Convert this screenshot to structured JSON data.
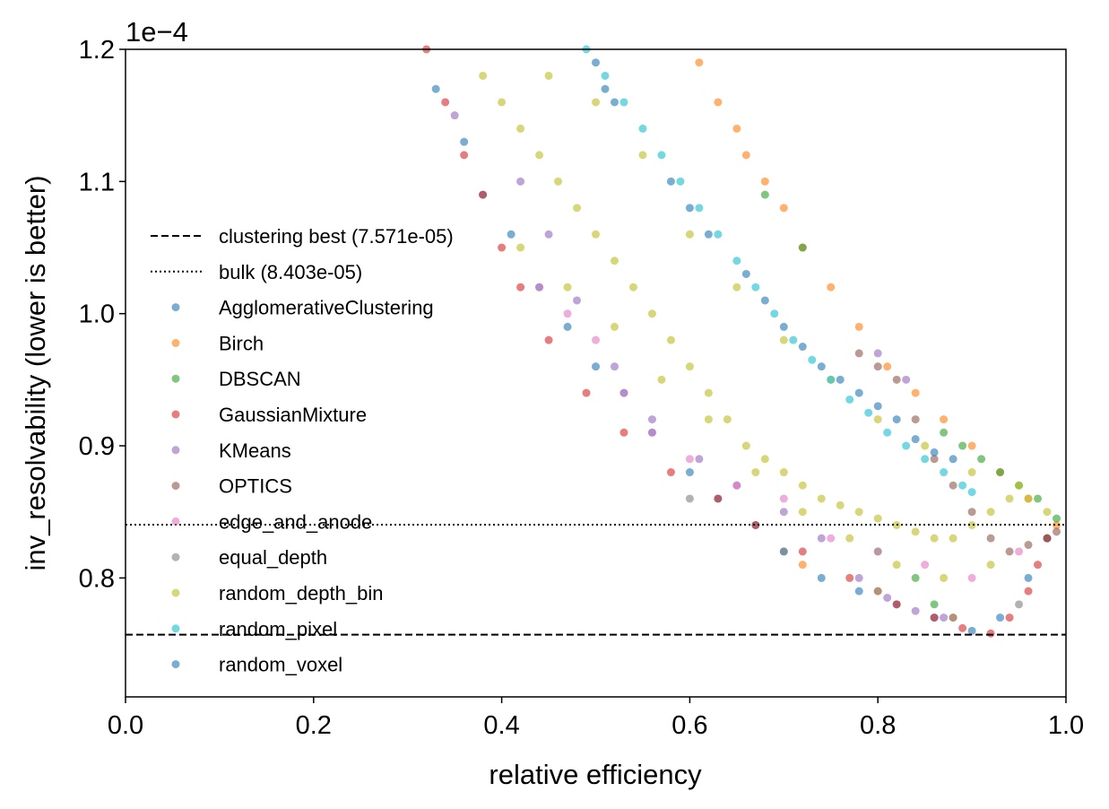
{
  "chart_data": {
    "type": "scatter",
    "title": "",
    "xlabel": "relative efficiency",
    "ylabel": "inv_resolvability (lower is better)",
    "y_offset_label": "1e−4",
    "xlim": [
      0.0,
      1.0
    ],
    "ylim": [
      0.71,
      1.2
    ],
    "x_ticks": [
      0.0,
      0.2,
      0.4,
      0.6,
      0.8,
      1.0
    ],
    "x_tick_labels": [
      "0.0",
      "0.2",
      "0.4",
      "0.6",
      "0.8",
      "1.0"
    ],
    "y_ticks": [
      0.8,
      0.9,
      1.0,
      1.1,
      1.2
    ],
    "y_tick_labels": [
      "0.8",
      "0.9",
      "1.0",
      "1.1",
      "1.2"
    ],
    "grid": false,
    "legend_position": "center-left",
    "reference_lines": [
      {
        "name": "clustering best (7.571e-05)",
        "y": 0.7571,
        "style": "dashed",
        "color": "#000000"
      },
      {
        "name": "bulk (8.403e-05)",
        "y": 0.8403,
        "style": "dotted",
        "color": "#000000"
      }
    ],
    "series": [
      {
        "name": "AgglomerativeClustering",
        "color": "#1f77b4",
        "points": [
          [
            0.33,
            1.17
          ],
          [
            0.36,
            1.13
          ],
          [
            0.38,
            1.09
          ],
          [
            0.41,
            1.06
          ],
          [
            0.44,
            1.02
          ],
          [
            0.47,
            0.99
          ],
          [
            0.5,
            0.96
          ],
          [
            0.53,
            0.94
          ],
          [
            0.56,
            0.91
          ],
          [
            0.6,
            0.88
          ],
          [
            0.63,
            0.86
          ],
          [
            0.67,
            0.84
          ],
          [
            0.7,
            0.82
          ],
          [
            0.74,
            0.8
          ],
          [
            0.78,
            0.79
          ],
          [
            0.82,
            0.78
          ],
          [
            0.86,
            0.77
          ],
          [
            0.9,
            0.76
          ],
          [
            0.93,
            0.77
          ],
          [
            0.96,
            0.8
          ],
          [
            0.98,
            0.83
          ]
        ]
      },
      {
        "name": "Birch",
        "color": "#ff7f0e",
        "points": [
          [
            0.61,
            1.19
          ],
          [
            0.63,
            1.16
          ],
          [
            0.65,
            1.14
          ],
          [
            0.66,
            1.12
          ],
          [
            0.68,
            1.1
          ],
          [
            0.7,
            1.08
          ],
          [
            0.72,
            1.05
          ],
          [
            0.75,
            1.02
          ],
          [
            0.78,
            0.99
          ],
          [
            0.81,
            0.96
          ],
          [
            0.84,
            0.94
          ],
          [
            0.87,
            0.92
          ],
          [
            0.9,
            0.9
          ],
          [
            0.93,
            0.88
          ],
          [
            0.96,
            0.86
          ],
          [
            0.99,
            0.84
          ],
          [
            0.72,
            0.81
          ],
          [
            0.8,
            0.79
          ],
          [
            0.88,
            0.77
          ]
        ]
      },
      {
        "name": "DBSCAN",
        "color": "#2ca02c",
        "points": [
          [
            0.68,
            1.09
          ],
          [
            0.72,
            1.05
          ],
          [
            0.87,
            0.91
          ],
          [
            0.89,
            0.9
          ],
          [
            0.91,
            0.89
          ],
          [
            0.93,
            0.88
          ],
          [
            0.95,
            0.87
          ],
          [
            0.97,
            0.86
          ],
          [
            0.99,
            0.845
          ],
          [
            0.8,
            0.82
          ],
          [
            0.84,
            0.8
          ],
          [
            0.86,
            0.78
          ]
        ]
      },
      {
        "name": "GaussianMixture",
        "color": "#d62728",
        "points": [
          [
            0.32,
            1.2
          ],
          [
            0.34,
            1.16
          ],
          [
            0.36,
            1.12
          ],
          [
            0.38,
            1.09
          ],
          [
            0.4,
            1.05
          ],
          [
            0.42,
            1.02
          ],
          [
            0.45,
            0.98
          ],
          [
            0.49,
            0.94
          ],
          [
            0.53,
            0.91
          ],
          [
            0.58,
            0.88
          ],
          [
            0.63,
            0.86
          ],
          [
            0.67,
            0.84
          ],
          [
            0.72,
            0.82
          ],
          [
            0.77,
            0.8
          ],
          [
            0.82,
            0.78
          ],
          [
            0.86,
            0.77
          ],
          [
            0.89,
            0.762
          ],
          [
            0.92,
            0.758
          ],
          [
            0.94,
            0.77
          ],
          [
            0.96,
            0.79
          ],
          [
            0.97,
            0.81
          ],
          [
            0.98,
            0.83
          ]
        ]
      },
      {
        "name": "KMeans",
        "color": "#9467bd",
        "points": [
          [
            0.35,
            1.15
          ],
          [
            0.42,
            1.1
          ],
          [
            0.45,
            1.06
          ],
          [
            0.48,
            1.01
          ],
          [
            0.52,
            0.96
          ],
          [
            0.56,
            0.92
          ],
          [
            0.61,
            0.89
          ],
          [
            0.65,
            0.87
          ],
          [
            0.7,
            0.85
          ],
          [
            0.74,
            0.83
          ],
          [
            0.78,
            0.8
          ],
          [
            0.81,
            0.785
          ],
          [
            0.84,
            0.775
          ],
          [
            0.87,
            0.77
          ],
          [
            0.8,
            0.97
          ],
          [
            0.83,
            0.95
          ]
        ]
      },
      {
        "name": "OPTICS",
        "color": "#8c564b",
        "points": [
          [
            0.78,
            0.97
          ],
          [
            0.8,
            0.96
          ],
          [
            0.82,
            0.95
          ],
          [
            0.84,
            0.92
          ],
          [
            0.86,
            0.89
          ],
          [
            0.88,
            0.87
          ],
          [
            0.9,
            0.85
          ],
          [
            0.92,
            0.83
          ],
          [
            0.94,
            0.82
          ],
          [
            0.96,
            0.825
          ],
          [
            0.98,
            0.83
          ],
          [
            0.99,
            0.835
          ]
        ]
      },
      {
        "name": "edge_and_anode",
        "color": "#e377c2",
        "points": [
          [
            0.44,
            1.02
          ],
          [
            0.47,
            1.0
          ],
          [
            0.5,
            0.98
          ],
          [
            0.53,
            0.94
          ],
          [
            0.56,
            0.91
          ],
          [
            0.6,
            0.89
          ],
          [
            0.65,
            0.87
          ],
          [
            0.7,
            0.86
          ],
          [
            0.75,
            0.83
          ],
          [
            0.8,
            0.82
          ],
          [
            0.85,
            0.81
          ],
          [
            0.9,
            0.8
          ],
          [
            0.95,
            0.82
          ]
        ]
      },
      {
        "name": "equal_depth",
        "color": "#7f7f7f",
        "points": [
          [
            0.6,
            0.86
          ],
          [
            0.7,
            0.82
          ],
          [
            0.8,
            0.79
          ],
          [
            0.88,
            0.77
          ],
          [
            0.95,
            0.78
          ]
        ]
      },
      {
        "name": "random_depth_bin",
        "color": "#bcbd22",
        "points": [
          [
            0.38,
            1.18
          ],
          [
            0.4,
            1.16
          ],
          [
            0.42,
            1.14
          ],
          [
            0.44,
            1.12
          ],
          [
            0.46,
            1.1
          ],
          [
            0.48,
            1.08
          ],
          [
            0.5,
            1.06
          ],
          [
            0.52,
            1.04
          ],
          [
            0.54,
            1.02
          ],
          [
            0.56,
            1.0
          ],
          [
            0.58,
            0.98
          ],
          [
            0.6,
            0.96
          ],
          [
            0.62,
            0.94
          ],
          [
            0.64,
            0.92
          ],
          [
            0.66,
            0.9
          ],
          [
            0.68,
            0.89
          ],
          [
            0.7,
            0.88
          ],
          [
            0.72,
            0.87
          ],
          [
            0.74,
            0.86
          ],
          [
            0.76,
            0.855
          ],
          [
            0.78,
            0.85
          ],
          [
            0.8,
            0.845
          ],
          [
            0.82,
            0.84
          ],
          [
            0.84,
            0.835
          ],
          [
            0.86,
            0.83
          ],
          [
            0.88,
            0.83
          ],
          [
            0.9,
            0.84
          ],
          [
            0.92,
            0.85
          ],
          [
            0.94,
            0.86
          ],
          [
            0.96,
            0.86
          ],
          [
            0.98,
            0.85
          ],
          [
            0.45,
            1.18
          ],
          [
            0.5,
            1.16
          ],
          [
            0.55,
            1.12
          ],
          [
            0.6,
            1.06
          ],
          [
            0.65,
            1.02
          ],
          [
            0.7,
            0.98
          ],
          [
            0.75,
            0.95
          ],
          [
            0.8,
            0.92
          ],
          [
            0.85,
            0.9
          ],
          [
            0.9,
            0.88
          ],
          [
            0.95,
            0.87
          ],
          [
            0.42,
            1.05
          ],
          [
            0.47,
            1.02
          ],
          [
            0.52,
            0.99
          ],
          [
            0.57,
            0.95
          ],
          [
            0.62,
            0.92
          ],
          [
            0.67,
            0.88
          ],
          [
            0.72,
            0.85
          ],
          [
            0.77,
            0.83
          ],
          [
            0.82,
            0.81
          ],
          [
            0.87,
            0.8
          ],
          [
            0.92,
            0.81
          ]
        ]
      },
      {
        "name": "random_pixel",
        "color": "#17becf",
        "points": [
          [
            0.49,
            1.2
          ],
          [
            0.51,
            1.18
          ],
          [
            0.53,
            1.16
          ],
          [
            0.55,
            1.14
          ],
          [
            0.57,
            1.12
          ],
          [
            0.59,
            1.1
          ],
          [
            0.61,
            1.08
          ],
          [
            0.63,
            1.06
          ],
          [
            0.65,
            1.04
          ],
          [
            0.67,
            1.02
          ],
          [
            0.69,
            1.0
          ],
          [
            0.71,
            0.98
          ],
          [
            0.73,
            0.965
          ],
          [
            0.75,
            0.95
          ],
          [
            0.77,
            0.935
          ],
          [
            0.79,
            0.925
          ],
          [
            0.81,
            0.91
          ],
          [
            0.83,
            0.9
          ],
          [
            0.85,
            0.89
          ],
          [
            0.87,
            0.88
          ],
          [
            0.89,
            0.87
          ],
          [
            0.9,
            0.865
          ]
        ]
      },
      {
        "name": "random_voxel",
        "color": "#1f77b4",
        "points": [
          [
            0.5,
            1.19
          ],
          [
            0.51,
            1.17
          ],
          [
            0.52,
            1.16
          ],
          [
            0.58,
            1.1
          ],
          [
            0.6,
            1.08
          ],
          [
            0.62,
            1.06
          ],
          [
            0.66,
            1.03
          ],
          [
            0.68,
            1.01
          ],
          [
            0.7,
            0.99
          ],
          [
            0.72,
            0.975
          ],
          [
            0.74,
            0.96
          ],
          [
            0.76,
            0.95
          ],
          [
            0.78,
            0.94
          ],
          [
            0.8,
            0.93
          ],
          [
            0.82,
            0.92
          ],
          [
            0.84,
            0.905
          ],
          [
            0.86,
            0.895
          ],
          [
            0.88,
            0.89
          ]
        ]
      }
    ]
  }
}
